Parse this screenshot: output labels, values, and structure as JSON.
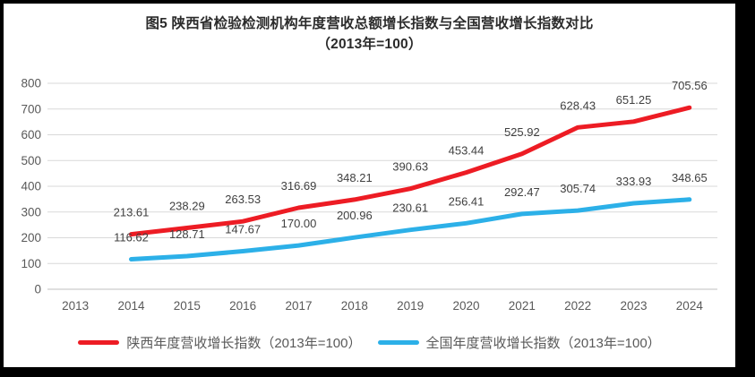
{
  "figure": {
    "title_line1": "图5  陕西省检验检测机构年度营收总额增长指数与全国营收增长指数对比",
    "title_line2": "（2013年=100）"
  },
  "chart_data": {
    "type": "line",
    "title": "图5 陕西省检验检测机构年度营收总额增长指数与全国营收增长指数对比（2013年=100）",
    "categories": [
      "2013",
      "2014",
      "2015",
      "2016",
      "2017",
      "2018",
      "2019",
      "2020",
      "2021",
      "2022",
      "2023",
      "2024"
    ],
    "series": [
      {
        "name": "陕西年度营收增长指数（2013年=100）",
        "slug": "shaanxi",
        "color": "#ED1C24",
        "values": [
          null,
          213.61,
          238.29,
          263.53,
          316.69,
          348.21,
          390.63,
          453.44,
          525.92,
          628.43,
          651.25,
          705.56
        ],
        "labels": [
          "",
          "213.61",
          "238.29",
          "263.53",
          "316.69",
          "348.21",
          "390.63",
          "453.44",
          "525.92",
          "628.43",
          "651.25",
          "705.56"
        ]
      },
      {
        "name": "全国年度营收增长指数（2013年=100）",
        "slug": "national",
        "color": "#2CB0E8",
        "values": [
          null,
          116.62,
          128.71,
          147.67,
          170.0,
          200.96,
          230.61,
          256.41,
          292.47,
          305.74,
          333.93,
          348.65
        ],
        "labels": [
          "",
          "116.62",
          "128.71",
          "147.67",
          "170.00",
          "200.96",
          "230.61",
          "256.41",
          "292.47",
          "305.74",
          "333.93",
          "348.65"
        ]
      }
    ],
    "ylim": [
      0,
      800
    ],
    "yticks": [
      "0",
      "100",
      "200",
      "300",
      "400",
      "500",
      "600",
      "700",
      "800"
    ],
    "grid": true,
    "data_labels": true,
    "legend_position": "bottom"
  },
  "style": {
    "grid_color": "#D9D9D9",
    "axis_color": "#BFBFBF",
    "tick_color": "#595959",
    "data_label_color": "#404040",
    "frame_color": "#000000",
    "background": "#FFFFFF"
  }
}
